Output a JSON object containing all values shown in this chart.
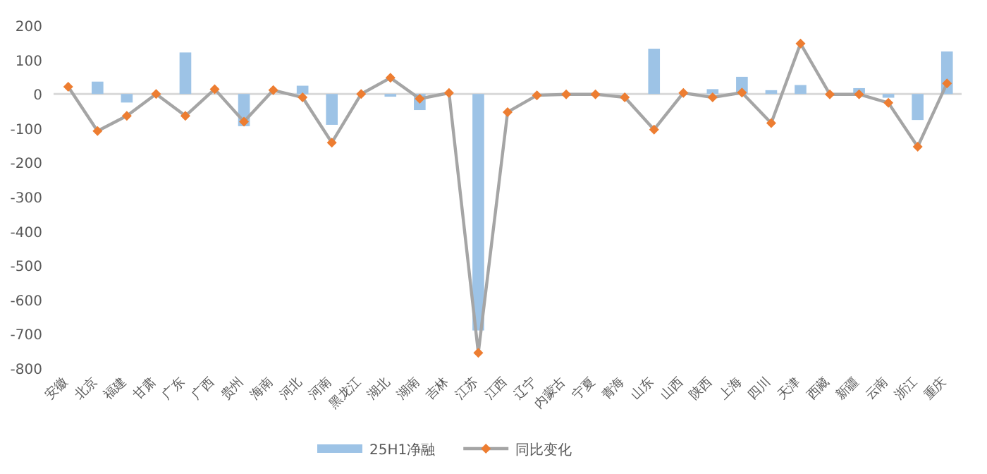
{
  "chart_data": {
    "type": "bar",
    "categories": [
      "安徽",
      "北京",
      "福建",
      "甘肃",
      "广东",
      "广西",
      "贵州",
      "海南",
      "河北",
      "河南",
      "黑龙江",
      "湖北",
      "湖南",
      "吉林",
      "江苏",
      "江西",
      "辽宁",
      "内蒙古",
      "宁夏",
      "青海",
      "山东",
      "山西",
      "陕西",
      "上海",
      "四川",
      "天津",
      "西藏",
      "新疆",
      "云南",
      "浙江",
      "重庆"
    ],
    "series": [
      {
        "name": "25H1净融",
        "color": "#9dc3e6",
        "values": [
          0,
          36,
          -25,
          0,
          121,
          0,
          -94,
          0,
          24,
          -90,
          0,
          -8,
          -47,
          0,
          -690,
          0,
          0,
          0,
          0,
          0,
          132,
          0,
          14,
          50,
          11,
          26,
          0,
          17,
          -11,
          -76,
          124
        ]
      },
      {
        "name": "同比变化",
        "type": "line",
        "color": "#a5a5a5",
        "marker": "diamond",
        "values": [
          21,
          -108,
          -64,
          0,
          -64,
          14,
          -81,
          11,
          -10,
          -142,
          0,
          47,
          -14,
          3,
          -755,
          -53,
          -4,
          -1,
          -1,
          -10,
          -104,
          3,
          -10,
          4,
          -85,
          147,
          -1,
          -1,
          -26,
          -154,
          31
        ]
      }
    ],
    "ylim": [
      -800,
      200
    ],
    "yticks": [
      -800,
      -700,
      -600,
      -500,
      -400,
      -300,
      -200,
      -100,
      0,
      100,
      200
    ],
    "legend": "bottom"
  }
}
